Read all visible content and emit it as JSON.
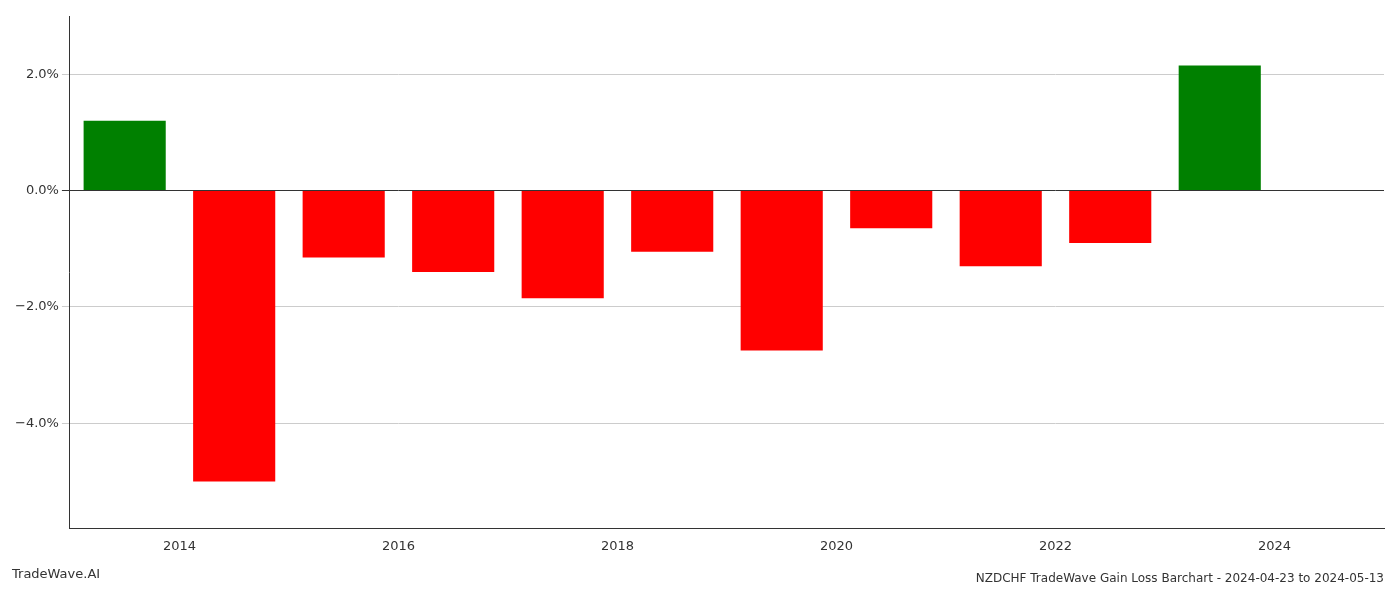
{
  "chart_data": {
    "type": "bar",
    "title": "NZDCHF TradeWave Gain Loss Barchart - 2024-04-23 to 2024-05-13",
    "annotations": [
      "TradeWave.AI"
    ],
    "x": [
      2013.5,
      2014.5,
      2015.5,
      2016.5,
      2017.5,
      2018.5,
      2019.5,
      2020.5,
      2021.5,
      2022.5,
      2023.5
    ],
    "values": [
      1.2,
      -5.0,
      -1.15,
      -1.4,
      -1.85,
      -1.05,
      -2.75,
      -0.65,
      -1.3,
      -0.9,
      2.15
    ],
    "colors": [
      "#008000",
      "#ff0000",
      "#ff0000",
      "#ff0000",
      "#ff0000",
      "#ff0000",
      "#ff0000",
      "#ff0000",
      "#ff0000",
      "#ff0000",
      "#008000"
    ],
    "xlim": [
      2013.0,
      2025.0
    ],
    "xticks": [
      2014,
      2016,
      2018,
      2020,
      2022,
      2024
    ],
    "ylim": [
      -5.8,
      3.0
    ],
    "yticks": [
      {
        "value": -4.0,
        "label": "−4.0%"
      },
      {
        "value": -2.0,
        "label": "−2.0%"
      },
      {
        "value": 0.0,
        "label": "0.0%"
      },
      {
        "value": 2.0,
        "label": "2.0%"
      }
    ],
    "grid": true
  }
}
